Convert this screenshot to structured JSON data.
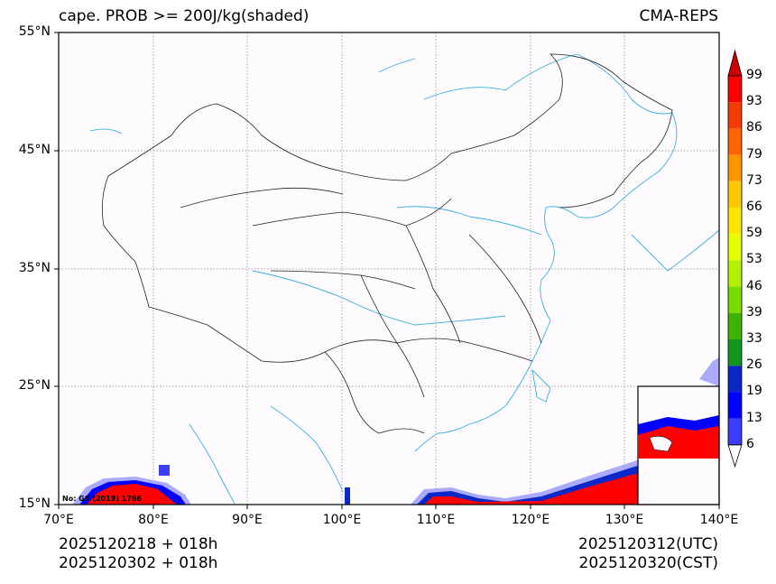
{
  "title_left": "cape. PROB >= 200J/kg(shaded)",
  "title_right": "CMA-REPS",
  "y_axis_labels": [
    "55°N",
    "45°N",
    "35°N",
    "25°N",
    "15°N"
  ],
  "x_axis_labels": [
    "70°E",
    "80°E",
    "90°E",
    "100°E",
    "110°E",
    "120°E",
    "130°E",
    "140°E"
  ],
  "init_time_utc": "2025120218  +  018h",
  "init_time_cst": "2025120302  +  018h",
  "valid_time_utc": "2025120312(UTC)",
  "valid_time_cst": "2025120320(CST)",
  "map_note": "No: GS (2019) 1786",
  "colorbar": {
    "levels": [
      "99",
      "93",
      "86",
      "79",
      "73",
      "66",
      "59",
      "53",
      "46",
      "39",
      "33",
      "26",
      "19",
      "13",
      "6"
    ],
    "colors": [
      "#ff0000",
      "#f53c00",
      "#ff6400",
      "#ff9600",
      "#ffc800",
      "#ffe600",
      "#e6ff00",
      "#b4f000",
      "#78dc00",
      "#3cb400",
      "#14961e",
      "#0a28c8",
      "#0000ff",
      "#3c3cff",
      "#aaaaff"
    ],
    "top_extend_color": "#cc0000",
    "bottom_extend_color": "#ffffff"
  },
  "colors": {
    "coast": "#3ab0e0",
    "border": "#222222",
    "grid": "#888888"
  }
}
